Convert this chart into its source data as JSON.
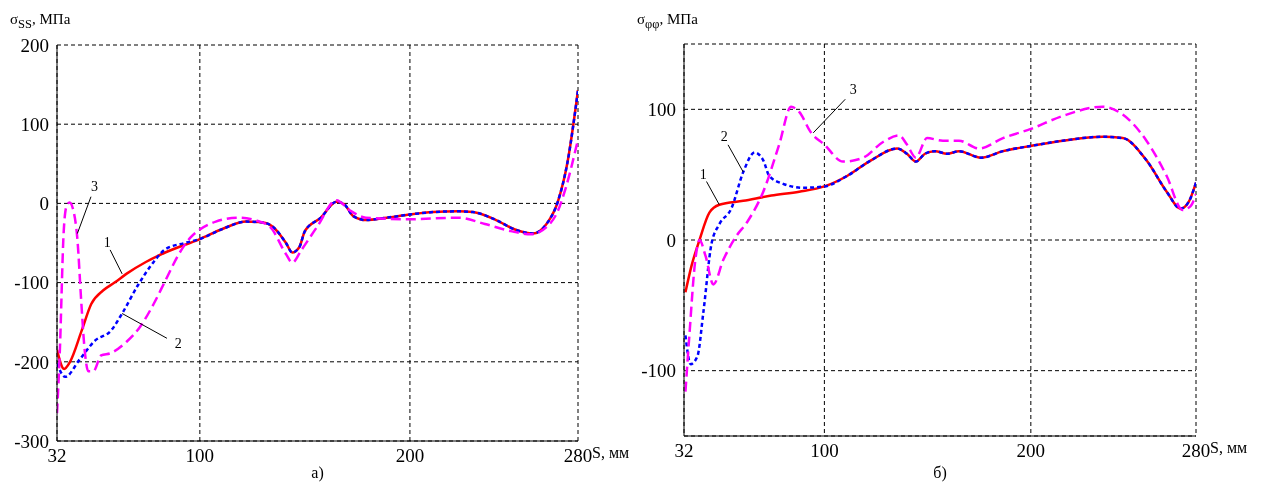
{
  "chart_data": [
    {
      "type": "line",
      "ylabel": "σ$_{SS}$, МПа",
      "xlabel": "S, мм",
      "xlim": [
        32,
        280
      ],
      "xticks": [
        32,
        100,
        200,
        280
      ],
      "ylim": [
        -300,
        200
      ],
      "yticks": [
        -300,
        -200,
        -100,
        0,
        100,
        200
      ],
      "grid": true,
      "marker": "none",
      "series": [
        {
          "color": "#ff0000",
          "line_style": "solid",
          "x": [
            32,
            35.4,
            38.2,
            43.7,
            48.3,
            53.9,
            59.4,
            65,
            74.3,
            83.5,
            100,
            111,
            122,
            130,
            135,
            141,
            144,
            147.4,
            150,
            157.6,
            165,
            168.7,
            173,
            179,
            189,
            200,
            211,
            223,
            230,
            241,
            250,
            258.5,
            265,
            270.5,
            275,
            280
          ],
          "values": [
            -185,
            -209,
            -200,
            -161,
            -127,
            -110,
            -100,
            -89,
            -74,
            -62,
            -45,
            -32,
            -23,
            -24,
            -30,
            -50,
            -62,
            -55,
            -35,
            -18,
            2,
            -1,
            -16,
            -21,
            -18,
            -14,
            -11,
            -10,
            -11,
            -21,
            -33,
            -38,
            -26,
            3,
            52,
            143
          ]
        },
        {
          "color": "#0000ff",
          "line_style": "dotted",
          "x": [
            32,
            35.9,
            42.8,
            50.2,
            57.6,
            63,
            70.6,
            78,
            83.5,
            92.8,
            100,
            111,
            122,
            130,
            135,
            141,
            144,
            147.4,
            150,
            157.6,
            165,
            168.7,
            173,
            179,
            189,
            200,
            211,
            223,
            230,
            241,
            250,
            258.5,
            265,
            270.5,
            275,
            280
          ],
          "values": [
            -202,
            -219,
            -197,
            -173,
            -161,
            -139,
            -103,
            -74,
            -58,
            -50,
            -45,
            -32,
            -23,
            -24,
            -30,
            -50,
            -62,
            -55,
            -35,
            -18,
            2,
            -1,
            -16,
            -21,
            -18,
            -14,
            -11,
            -10,
            -11,
            -21,
            -33,
            -38,
            -26,
            3,
            52,
            143
          ]
        },
        {
          "color": "#ff00ff",
          "line_style": "dashed",
          "x": [
            32,
            33.3,
            35.2,
            36.5,
            38,
            39.8,
            41.7,
            43.5,
            45,
            46.9,
            49.3,
            53,
            57.6,
            65,
            71.5,
            78,
            83.5,
            90,
            95.6,
            100,
            107.6,
            118.7,
            126,
            133.5,
            141,
            144,
            148.3,
            155.7,
            165,
            171.5,
            179,
            200,
            223,
            235.7,
            248,
            257.6,
            265,
            270.5,
            274,
            280
          ],
          "values": [
            -265,
            -190,
            -35,
            -4,
            1,
            -9,
            -45,
            -122,
            -180,
            -212,
            -212,
            -192,
            -189,
            -175,
            -156,
            -127,
            -98,
            -64,
            -43,
            -33,
            -23,
            -18,
            -21,
            -30,
            -64,
            -75,
            -59,
            -30,
            4,
            -9,
            -18,
            -20,
            -18,
            -26,
            -35,
            -39,
            -30,
            -9,
            18,
            81
          ]
        }
      ],
      "annotations": [
        {
          "text": "1",
          "x": 63,
          "y": -89
        },
        {
          "text": "2",
          "x": 63,
          "y": -139
        },
        {
          "text": "3",
          "x": 41.7,
          "y": -38
        },
        "а)"
      ]
    },
    {
      "type": "line",
      "ylabel": "σ$_{φφ}$, МПа",
      "xlabel": "S, мм",
      "xlim": [
        32,
        280
      ],
      "xticks": [
        32,
        100,
        200,
        280
      ],
      "ylim": [
        -150,
        150
      ],
      "yticks": [
        -100,
        0,
        100
      ],
      "grid": true,
      "marker": "none",
      "series": [
        {
          "color": "#ff0000",
          "line_style": "solid",
          "x": [
            32.7,
            35.6,
            39.5,
            44.3,
            49.1,
            60.7,
            74.3,
            87.8,
            100,
            111,
            122.6,
            135.2,
            140,
            144.3,
            148.7,
            153.6,
            159.4,
            165.2,
            175.8,
            186.5,
            200,
            215.5,
            234.8,
            244.5,
            256,
            265.8,
            272.5,
            276.4,
            280
          ],
          "values": [
            -40,
            -20,
            0,
            21,
            27,
            30,
            34,
            37,
            41,
            49,
            61,
            70,
            66,
            60,
            66,
            68,
            66,
            68,
            63,
            68,
            72,
            76,
            79,
            78,
            61,
            37,
            24,
            29,
            44
          ]
        },
        {
          "color": "#0000ff",
          "line_style": "dotted",
          "x": [
            32.7,
            35.2,
            38.5,
            41.4,
            45.3,
            49.1,
            54.9,
            60.7,
            66.2,
            70.4,
            73.3,
            80,
            89.7,
            100,
            111,
            122.6,
            135.2,
            140,
            144.3,
            148.7,
            153.6,
            159.4,
            165.2,
            175.8,
            186.5,
            200,
            215.5,
            234.8,
            244.5,
            256,
            265.8,
            272.5,
            276.4,
            280
          ],
          "values": [
            -73,
            -95,
            -89,
            -55,
            -3,
            12,
            24,
            52,
            67,
            61,
            49,
            43,
            40,
            41,
            49,
            61,
            70,
            66,
            60,
            66,
            68,
            66,
            68,
            63,
            68,
            72,
            76,
            79,
            78,
            61,
            37,
            24,
            29,
            44
          ]
        },
        {
          "color": "#ff00ff",
          "line_style": "dashed",
          "x": [
            32.7,
            34.6,
            37.5,
            39.5,
            42.4,
            46.2,
            51.1,
            56.9,
            62.7,
            70.4,
            78.1,
            83.9,
            87.8,
            93.6,
            100,
            109,
            118.8,
            128.4,
            136.2,
            140,
            144.3,
            149.7,
            157.4,
            165.2,
            174.9,
            186.5,
            200,
            215.5,
            234.8,
            244.5,
            256,
            265.8,
            273.5,
            277.4,
            280
          ],
          "values": [
            -116,
            -73,
            -15,
            0,
            -12,
            -34,
            -15,
            2,
            14,
            37,
            73,
            102,
            98,
            82,
            73,
            60,
            63,
            75,
            80,
            73,
            63,
            78,
            76,
            76,
            70,
            78,
            85,
            95,
            102,
            96,
            76,
            49,
            23,
            26,
            35
          ]
        }
      ],
      "annotations": [
        {
          "text": "1",
          "x": 49.1,
          "y": 27
        },
        {
          "text": "2",
          "x": 60.7,
          "y": 52
        },
        {
          "text": "3",
          "x": 94.6,
          "y": 82
        },
        "б)"
      ]
    }
  ]
}
